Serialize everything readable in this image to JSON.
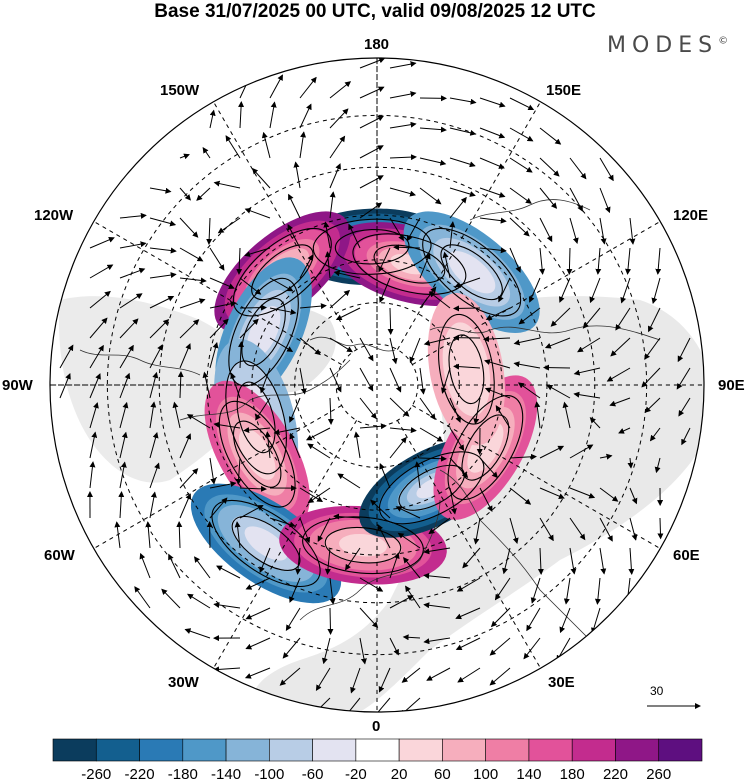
{
  "header": {
    "title": "Base 31/07/2025 00 UTC, valid 09/08/2025 12 UTC",
    "brand": "MODES",
    "brand_mark": "©"
  },
  "map": {
    "projection": "north-polar-stereographic",
    "longitude_labels": {
      "top": "180",
      "top_right": "150E",
      "right_upper": "120E",
      "right": "90E",
      "right_lower": "60E",
      "bottom_right": "30E",
      "bottom": "0",
      "bottom_left": "30W",
      "left_lower": "60W",
      "left": "90W",
      "left_upper": "120W",
      "top_left": "150W"
    },
    "reference_vector": "30",
    "anomaly_centers": [
      {
        "lon": -178,
        "lat": 57,
        "sign": "negative",
        "magnitude": 260
      },
      {
        "lon": 165,
        "lat": 60,
        "sign": "positive",
        "magnitude": 220
      },
      {
        "lon": 140,
        "lat": 55,
        "sign": "negative",
        "magnitude": 140
      },
      {
        "lon": -140,
        "lat": 55,
        "sign": "positive",
        "magnitude": 220
      },
      {
        "lon": -115,
        "lat": 60,
        "sign": "negative",
        "magnitude": 140
      },
      {
        "lon": -75,
        "lat": 60,
        "sign": "negative",
        "magnitude": 100
      },
      {
        "lon": -60,
        "lat": 57,
        "sign": "positive",
        "magnitude": 140
      },
      {
        "lon": -35,
        "lat": 45,
        "sign": "negative",
        "magnitude": 180
      },
      {
        "lon": -5,
        "lat": 52,
        "sign": "positive",
        "magnitude": 180
      },
      {
        "lon": 28,
        "lat": 62,
        "sign": "negative",
        "magnitude": 260
      },
      {
        "lon": 60,
        "lat": 60,
        "sign": "positive",
        "magnitude": 140
      },
      {
        "lon": 100,
        "lat": 68,
        "sign": "positive",
        "magnitude": 60
      }
    ]
  },
  "colorbar": {
    "labels": [
      "-260",
      "-220",
      "-180",
      "-140",
      "-100",
      "-60",
      "-20",
      "20",
      "60",
      "100",
      "140",
      "180",
      "220",
      "260"
    ],
    "colors": [
      "#0b3c5d",
      "#135f8f",
      "#2a7ab5",
      "#4f98c8",
      "#86b4d8",
      "#b8cde6",
      "#e3e3f1",
      "#ffffff",
      "#fad6da",
      "#f6aebd",
      "#ef7ea5",
      "#e2529a",
      "#c32c8e",
      "#8f1787",
      "#5e0f80"
    ]
  }
}
